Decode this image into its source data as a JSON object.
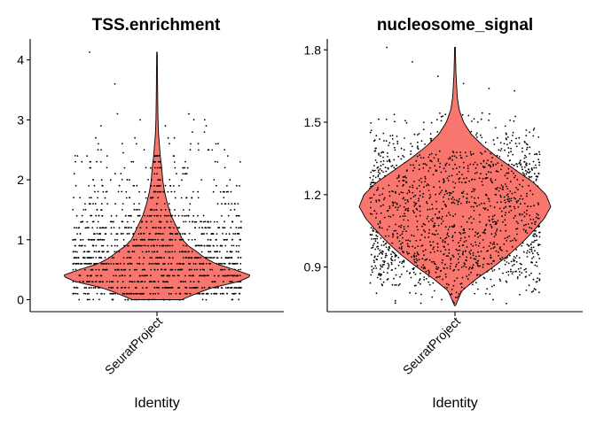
{
  "chart_data": [
    {
      "type": "violin",
      "title": "TSS.enrichment",
      "xlabel": "Identity",
      "ylabel": "",
      "categories": [
        "SeuratProject"
      ],
      "ylim": [
        -0.2,
        4.35
      ],
      "yticks": [
        0,
        1,
        2,
        3,
        4
      ],
      "ytick_labels": [
        "0",
        "1",
        "2",
        "3",
        "4"
      ],
      "fill_color": "#F8766D",
      "jitter_points": true,
      "series": [
        {
          "values_min": 0,
          "values_max": 4.13,
          "density_profile": [
            [
              0.0,
              0.26
            ],
            [
              0.1,
              0.41
            ],
            [
              0.2,
              0.58
            ],
            [
              0.3,
              0.86
            ],
            [
              0.4,
              1.0
            ],
            [
              0.5,
              0.82
            ],
            [
              0.6,
              0.62
            ],
            [
              0.7,
              0.5
            ],
            [
              0.8,
              0.42
            ],
            [
              0.9,
              0.33
            ],
            [
              1.0,
              0.27
            ],
            [
              1.2,
              0.21
            ],
            [
              1.4,
              0.15
            ],
            [
              1.6,
              0.11
            ],
            [
              1.8,
              0.08
            ],
            [
              2.0,
              0.06
            ],
            [
              2.2,
              0.05
            ],
            [
              2.4,
              0.035
            ],
            [
              2.6,
              0.025
            ],
            [
              2.8,
              0.015
            ],
            [
              3.0,
              0.011
            ],
            [
              3.3,
              0.008
            ],
            [
              3.6,
              0.006
            ],
            [
              4.13,
              0.003
            ]
          ],
          "outliers": [
            4.13,
            3.6,
            3.0,
            2.9,
            2.6,
            2.6,
            2.5,
            2.45
          ]
        }
      ]
    },
    {
      "type": "violin",
      "title": "nucleosome_signal",
      "xlabel": "Identity",
      "ylabel": "",
      "categories": [
        "SeuratProject"
      ],
      "ylim": [
        0.715,
        1.845
      ],
      "yticks": [
        0.9,
        1.2,
        1.5,
        1.8
      ],
      "ytick_labels": [
        "0.9",
        "1.2",
        "1.5",
        "1.8"
      ],
      "fill_color": "#F8766D",
      "jitter_points": true,
      "series": [
        {
          "values_min": 0.74,
          "values_max": 1.81,
          "density_profile": [
            [
              0.74,
              0.005
            ],
            [
              0.8,
              0.07
            ],
            [
              0.85,
              0.22
            ],
            [
              0.9,
              0.4
            ],
            [
              0.95,
              0.56
            ],
            [
              1.0,
              0.7
            ],
            [
              1.05,
              0.82
            ],
            [
              1.1,
              0.93
            ],
            [
              1.15,
              1.0
            ],
            [
              1.2,
              0.95
            ],
            [
              1.25,
              0.82
            ],
            [
              1.3,
              0.64
            ],
            [
              1.35,
              0.46
            ],
            [
              1.4,
              0.3
            ],
            [
              1.45,
              0.17
            ],
            [
              1.5,
              0.09
            ],
            [
              1.55,
              0.045
            ],
            [
              1.6,
              0.025
            ],
            [
              1.7,
              0.01
            ],
            [
              1.81,
              0.004
            ]
          ],
          "outliers": [
            1.81,
            1.75,
            1.69,
            1.66,
            1.64,
            1.63,
            0.76,
            0.75
          ]
        }
      ]
    }
  ]
}
